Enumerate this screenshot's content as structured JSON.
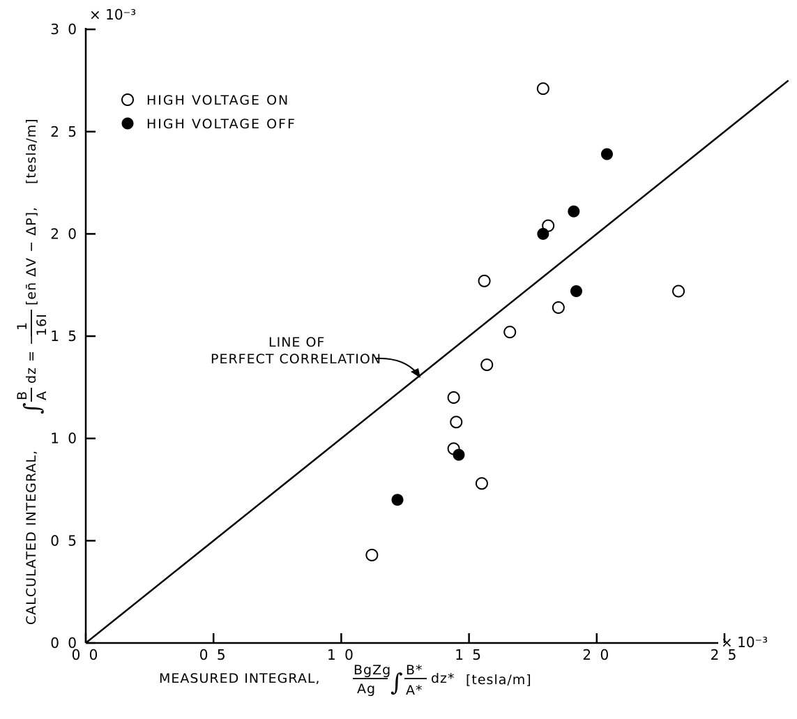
{
  "chart_data": {
    "type": "scatter",
    "x_scale_label": "× 10⁻³",
    "y_scale_label": "× 10⁻³",
    "xlim": [
      0,
      2.75
    ],
    "ylim": [
      0,
      3.0
    ],
    "x_ticks": [
      0.0,
      0.5,
      1.0,
      1.5,
      2.0,
      2.5
    ],
    "y_ticks": [
      0.0,
      0.5,
      1.0,
      1.5,
      2.0,
      2.5,
      3.0
    ],
    "x_tick_labels": [
      "0 0",
      "0 5",
      "1 0",
      "1 5",
      "2 0",
      "2 5"
    ],
    "y_tick_labels": [
      "0 0",
      "0 5",
      "1 0",
      "1 5",
      "2 0",
      "2 5",
      "3 0"
    ],
    "xlabel": {
      "prefix": "MEASURED INTEGRAL,",
      "frac_num": "BgZg",
      "frac_den": "Ag",
      "integral": "∫",
      "inner_num": "B*",
      "inner_den": "A*",
      "suffix": "dz*",
      "units": "[tesla/m]"
    },
    "ylabel": {
      "prefix": "CALCULATED INTEGRAL,",
      "integral": "∫",
      "frac_num": "B",
      "frac_den": "A",
      "mid": "dz = −",
      "frac2_num": "1",
      "frac2_den": "16I",
      "bracket": "[en̄ ΔV − ΔP],",
      "units": "[tesla/m]"
    },
    "grid": false,
    "legend_position": "top-left",
    "series": [
      {
        "name": "HIGH VOLTAGE ON",
        "marker": "open-circle",
        "points": [
          {
            "x": 1.12,
            "y": 0.43
          },
          {
            "x": 1.44,
            "y": 0.95
          },
          {
            "x": 1.45,
            "y": 1.08
          },
          {
            "x": 1.44,
            "y": 1.2
          },
          {
            "x": 1.55,
            "y": 0.78
          },
          {
            "x": 1.57,
            "y": 1.36
          },
          {
            "x": 1.56,
            "y": 1.77
          },
          {
            "x": 1.66,
            "y": 1.52
          },
          {
            "x": 1.81,
            "y": 2.04
          },
          {
            "x": 1.85,
            "y": 1.64
          },
          {
            "x": 1.79,
            "y": 2.71
          },
          {
            "x": 2.32,
            "y": 1.72
          }
        ]
      },
      {
        "name": "HIGH VOLTAGE OFF",
        "marker": "filled-circle",
        "points": [
          {
            "x": 1.22,
            "y": 0.7
          },
          {
            "x": 1.46,
            "y": 0.92
          },
          {
            "x": 1.79,
            "y": 2.0
          },
          {
            "x": 1.91,
            "y": 2.11
          },
          {
            "x": 1.92,
            "y": 1.72
          },
          {
            "x": 2.04,
            "y": 2.39
          }
        ]
      }
    ],
    "reference_line": {
      "label_line1": "LINE OF",
      "label_line2": "PERFECT CORRELATION",
      "from": [
        0,
        0
      ],
      "to": [
        2.75,
        2.75
      ],
      "label_anchor_x": 1.3,
      "label_anchor_y": 1.3
    }
  }
}
